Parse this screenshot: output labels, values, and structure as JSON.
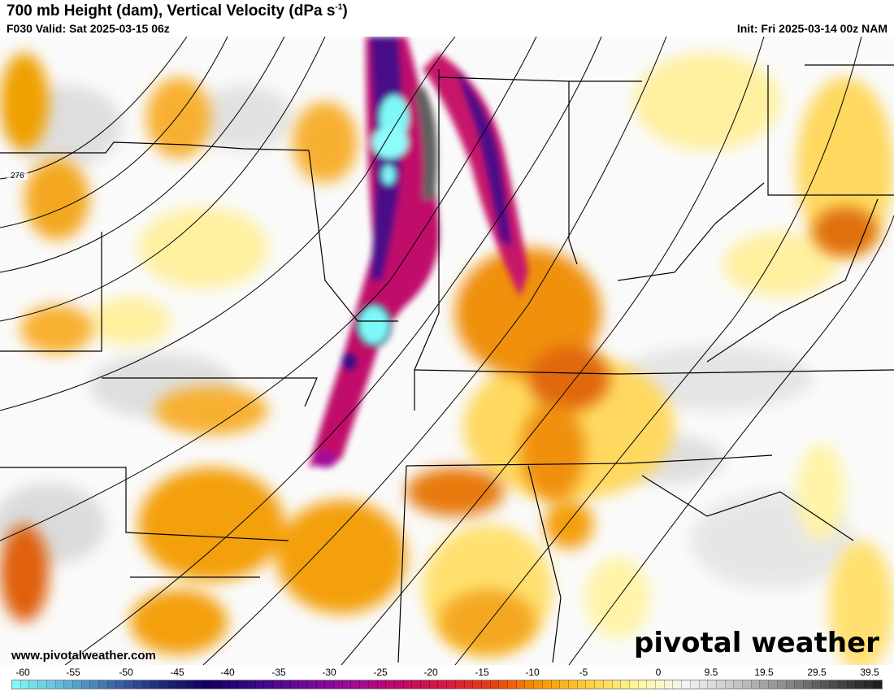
{
  "header": {
    "title": "700 mb Height (dam), Vertical Velocity (dPa s",
    "title_sup": "-1",
    "title_end": ")",
    "valid": "F030 Valid: Sat 2025-03-15 06z",
    "init": "Init: Fri 2025-03-14 00z NAM"
  },
  "map": {
    "contour_label": "276",
    "watermark_url": "www.pivotalweather.com",
    "logo": "pivotal weather"
  },
  "colorbar": {
    "labels": [
      "-60",
      "-55",
      "-50",
      "-45",
      "-40",
      "-35",
      "-30",
      "-25",
      "-20",
      "-15",
      "-10",
      "-5",
      "0",
      "9.5",
      "19.5",
      "29.5",
      "39.5"
    ],
    "stops": [
      "#7ff8f8",
      "#5fb6d6",
      "#3f6aa8",
      "#202c78",
      "#120060",
      "#3a0884",
      "#6c0a98",
      "#a0089a",
      "#c0086a",
      "#d81a40",
      "#e84010",
      "#f89c00",
      "#ffd040",
      "#fff8a0",
      "#f4f4f4",
      "#c8c8c8",
      "#909090",
      "#505050",
      "#202020"
    ]
  }
}
